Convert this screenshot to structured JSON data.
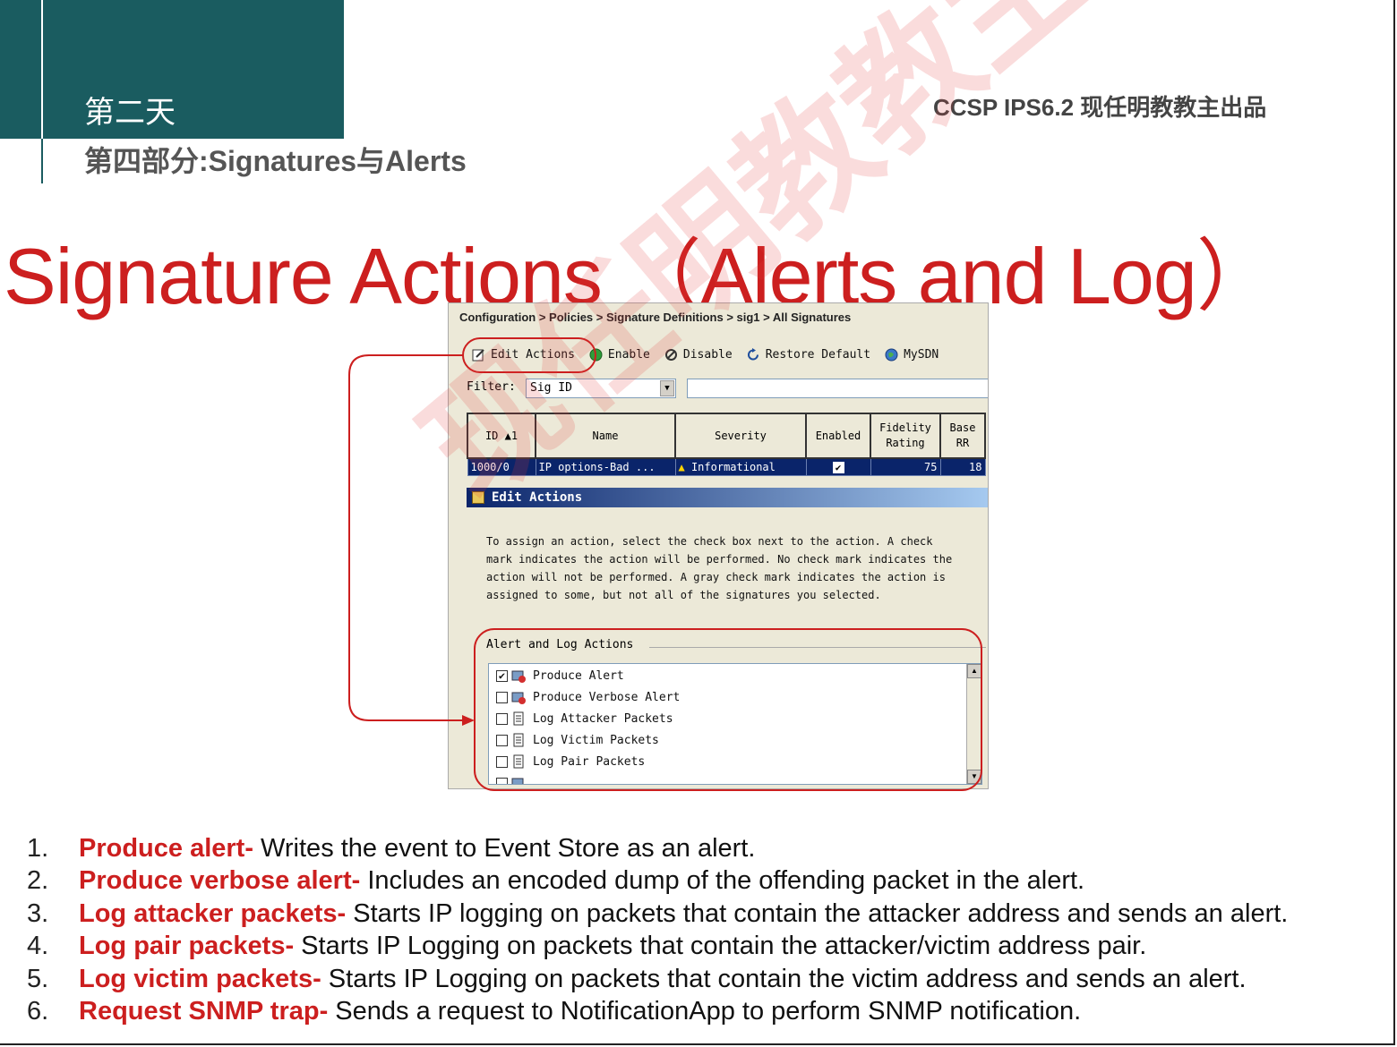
{
  "header": {
    "day": "第二天",
    "part": "第四部分:Signatures与Alerts",
    "brand": "CCSP IPS6.2  现任明教教主出品"
  },
  "title": "Signature Actions （Alerts and Log）",
  "screenshot": {
    "breadcrumb": "Configuration > Policies > Signature Definitions > sig1 > All Signatures",
    "toolbar": [
      {
        "label": "Edit Actions",
        "icon": "edit-icon"
      },
      {
        "label": "Enable",
        "icon": "enable-icon"
      },
      {
        "label": "Disable",
        "icon": "disable-icon"
      },
      {
        "label": "Restore Default",
        "icon": "restore-icon"
      },
      {
        "label": "MySDN",
        "icon": "globe-icon"
      }
    ],
    "filter_label": "Filter:",
    "filter_value": "Sig ID",
    "table": {
      "headers": [
        "ID ▲1",
        "Name",
        "Severity",
        "Enabled",
        "Fidelity Rating",
        "Base RR"
      ],
      "row": [
        "1000/0",
        "IP options-Bad ...",
        "Informational",
        "✔",
        "75",
        "18"
      ]
    },
    "dialog_title": "Edit Actions",
    "description": "To assign an action, select the check box next to the action. A check mark indicates the action will be performed. No check mark indicates the action will not be performed. A gray check mark indicates the action is assigned to some, but not all of the signatures you selected.",
    "group_label": "Alert and Log Actions",
    "actions": [
      {
        "label": "Produce Alert",
        "checked": true,
        "icon": "alert-icon"
      },
      {
        "label": "Produce Verbose Alert",
        "checked": false,
        "icon": "alert-icon"
      },
      {
        "label": "Log Attacker Packets",
        "checked": false,
        "icon": "log-icon"
      },
      {
        "label": "Log Victim Packets",
        "checked": false,
        "icon": "log-icon"
      },
      {
        "label": "Log Pair Packets",
        "checked": false,
        "icon": "log-icon"
      }
    ],
    "annotation_color": "#cc1f1f"
  },
  "watermark": "现任明教教主",
  "notes": [
    {
      "num": "1.",
      "term": "Produce alert-",
      "text": " Writes the event to Event Store as an alert."
    },
    {
      "num": "2.",
      "term": "Produce verbose alert-",
      "text": " Includes an encoded dump of the offending packet in the alert."
    },
    {
      "num": "3.",
      "term": "Log attacker packets-",
      "text": " Starts IP logging on packets that contain the attacker address and sends an alert."
    },
    {
      "num": "4.",
      "term": "Log pair packets-",
      "text": " Starts IP Logging on packets that contain the attacker/victim address pair."
    },
    {
      "num": "5.",
      "term": "Log victim packets-",
      "text": " Starts IP Logging on packets that contain the victim address and sends an alert."
    },
    {
      "num": "6.",
      "term": "Request SNMP trap-",
      "text": " Sends a request to NotificationApp to perform SNMP notification."
    }
  ]
}
